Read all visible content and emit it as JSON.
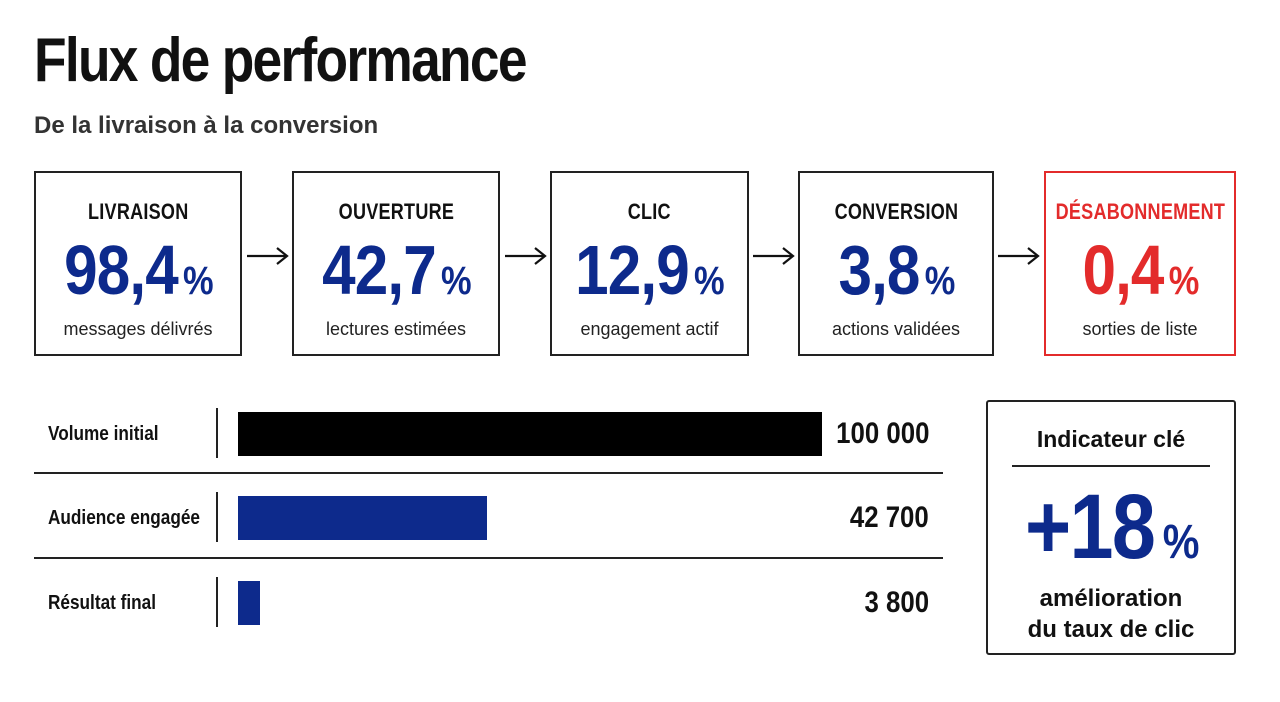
{
  "title": "Flux de performance",
  "subtitle": "De la livraison à la conversion",
  "colors": {
    "primary": "#0d2a8c",
    "alert": "#e32b2b",
    "neutral": "#000000"
  },
  "funnel": [
    {
      "label": "LIVRAISON",
      "value": "98,4",
      "unit": "%",
      "caption": "messages délivrés"
    },
    {
      "label": "OUVERTURE",
      "value": "42,7",
      "unit": "%",
      "caption": "lectures estimées"
    },
    {
      "label": "CLIC",
      "value": "12,9",
      "unit": "%",
      "caption": "engagement actif"
    },
    {
      "label": "CONVERSION",
      "value": "3,8",
      "unit": "%",
      "caption": "actions validées"
    },
    {
      "label": "DÉSABONNEMENT",
      "value": "0,4",
      "unit": "%",
      "caption": "sorties de liste"
    }
  ],
  "chart_data": {
    "type": "bar",
    "orientation": "horizontal",
    "categories": [
      "Volume initial",
      "Audience engagée",
      "Résultat final"
    ],
    "values": [
      100000,
      42700,
      3800
    ],
    "value_labels": [
      "100 000",
      "42 700",
      "3 800"
    ],
    "bar_colors": [
      "#000000",
      "#0d2a8c",
      "#0d2a8c"
    ]
  },
  "key_indicator": {
    "title": "Indicateur clé",
    "value": "+18",
    "unit": "%",
    "caption_line1": "amélioration",
    "caption_line2": "du taux de clic"
  }
}
